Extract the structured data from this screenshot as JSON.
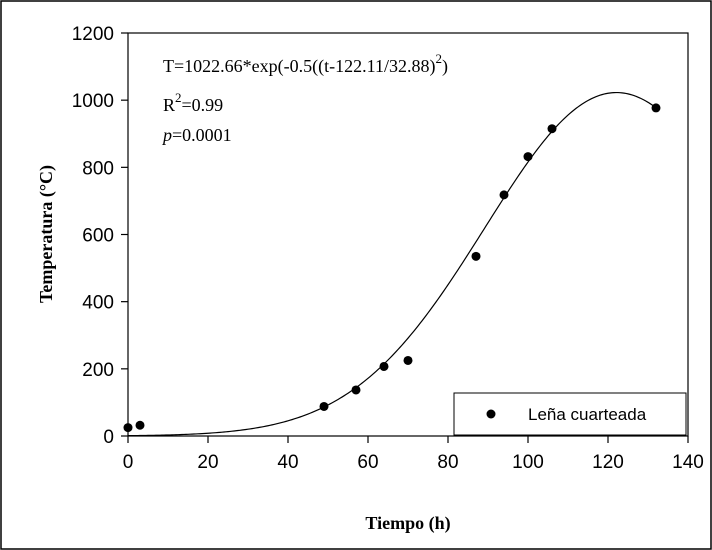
{
  "chart_data": {
    "type": "scatter",
    "title": "",
    "xlabel": "Tiempo (h)",
    "ylabel": "Temperatura (°C)",
    "xlim": [
      0,
      140
    ],
    "ylim": [
      0,
      1200
    ],
    "xticks": [
      0,
      20,
      40,
      60,
      80,
      100,
      120,
      140
    ],
    "yticks": [
      0,
      200,
      400,
      600,
      800,
      1000,
      1200
    ],
    "grid": false,
    "legend_position": "bottom-right",
    "series": [
      {
        "name": "Leña cuarteada",
        "type": "scatter",
        "x": [
          0,
          3,
          49,
          57,
          64,
          70,
          87,
          94,
          100,
          106,
          132
        ],
        "y": [
          25,
          32,
          88,
          137,
          207,
          225,
          535,
          718,
          832,
          915,
          977
        ]
      }
    ],
    "fit": {
      "type": "gaussian",
      "a": 1022.66,
      "t0": 122.11,
      "b": 32.88
    },
    "annotations": {
      "equation_main": "T=1022.66*exp(-0.5((t-122.11/32.88)",
      "equation_exp": "2",
      "equation_close": ")",
      "r2_main": "R",
      "r2_sup": "2",
      "r2_value": "=0.99",
      "p_label": "p",
      "p_value": "=0.0001"
    }
  }
}
